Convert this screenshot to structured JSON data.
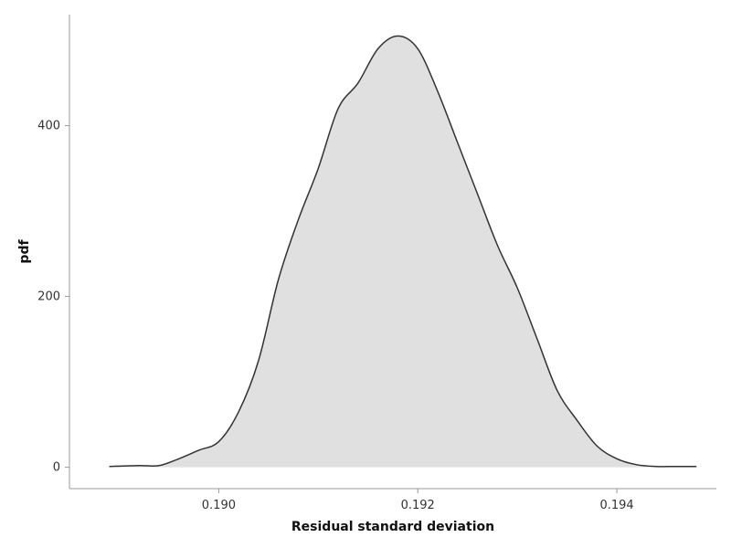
{
  "chart_data": {
    "type": "area",
    "title": "",
    "xlabel": "Residual standard deviation",
    "ylabel": "pdf",
    "xlim": [
      0.1885,
      0.195
    ],
    "ylim": [
      -25,
      530
    ],
    "xticks": [
      0.19,
      0.192,
      0.194
    ],
    "xtick_labels": [
      "0.190",
      "0.192",
      "0.194"
    ],
    "yticks": [
      0,
      200,
      400
    ],
    "ytick_labels": [
      "0",
      "200",
      "400"
    ],
    "grid": false,
    "legend": "none",
    "fill_color": "#e0e0e0",
    "line_color": "#333333",
    "series": [
      {
        "x": [
          0.1889,
          0.1892,
          0.1894,
          0.1896,
          0.1898,
          0.19,
          0.1902,
          0.1904,
          0.1906,
          0.1908,
          0.191,
          0.1912,
          0.1914,
          0.1916,
          0.1918,
          0.192,
          0.1922,
          0.1924,
          0.1926,
          0.1928,
          0.193,
          0.1932,
          0.1934,
          0.1936,
          0.1938,
          0.194,
          0.1942,
          0.1944,
          0.1946,
          0.1948
        ],
        "y": [
          1,
          2,
          2,
          10,
          20,
          30,
          65,
          125,
          220,
          290,
          350,
          420,
          450,
          490,
          505,
          490,
          440,
          380,
          320,
          260,
          210,
          150,
          90,
          55,
          25,
          10,
          3,
          1,
          1,
          1
        ]
      }
    ]
  }
}
